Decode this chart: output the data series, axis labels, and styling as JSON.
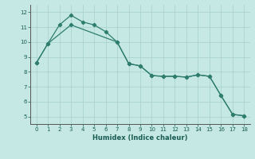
{
  "xlabel": "Humidex (Indice chaleur)",
  "line1_x": [
    0,
    1,
    2,
    3,
    4,
    5,
    6,
    7,
    8,
    9,
    10,
    11,
    12,
    13,
    14,
    15,
    16,
    17,
    18
  ],
  "line1_y": [
    8.6,
    9.9,
    11.15,
    11.8,
    11.35,
    11.15,
    10.7,
    10.0,
    8.55,
    8.4,
    7.75,
    7.7,
    7.7,
    7.65,
    7.8,
    7.7,
    6.4,
    5.15,
    5.05
  ],
  "line2_x": [
    0,
    1,
    3,
    7,
    8,
    9,
    10,
    11,
    12,
    13,
    14,
    15,
    16,
    17,
    18
  ],
  "line2_y": [
    8.6,
    9.9,
    11.15,
    10.0,
    8.55,
    8.4,
    7.75,
    7.7,
    7.7,
    7.65,
    7.8,
    7.7,
    6.4,
    5.15,
    5.05
  ],
  "line_color": "#2e7d6e",
  "bg_color": "#c5e8e5",
  "grid_color": "#aad4d0",
  "ylim": [
    4.5,
    12.5
  ],
  "xlim": [
    -0.5,
    18.5
  ],
  "yticks": [
    5,
    6,
    7,
    8,
    9,
    10,
    11,
    12
  ],
  "xticks": [
    0,
    1,
    2,
    3,
    4,
    5,
    6,
    7,
    8,
    9,
    10,
    11,
    12,
    13,
    14,
    15,
    16,
    17,
    18
  ]
}
